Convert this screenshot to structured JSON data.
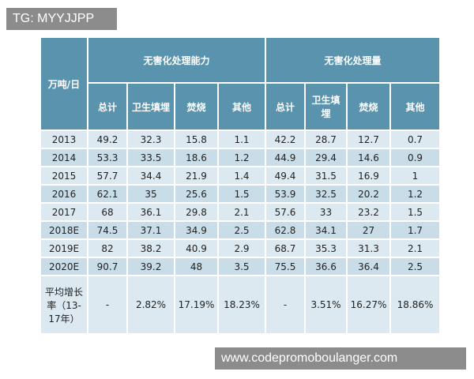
{
  "watermark_top": "TG: MYYJJPP",
  "watermark_bottom": "www.codepromoboulanger.com",
  "table": {
    "unit": "万吨/日",
    "groups": [
      "无害化处理能力",
      "无害化处理量"
    ],
    "subheaders": [
      "总计",
      "卫生填埋",
      "焚烧",
      "其他",
      "总计",
      "卫生填埋",
      "焚烧",
      "其他"
    ],
    "rows": [
      [
        "2013",
        "49.2",
        "32.3",
        "15.8",
        "1.1",
        "42.2",
        "28.7",
        "12.7",
        "0.7"
      ],
      [
        "2014",
        "53.3",
        "33.5",
        "18.6",
        "1.2",
        "44.9",
        "29.4",
        "14.6",
        "0.9"
      ],
      [
        "2015",
        "57.7",
        "34.4",
        "21.9",
        "1.4",
        "49.4",
        "31.5",
        "16.9",
        "1"
      ],
      [
        "2016",
        "62.1",
        "35",
        "25.6",
        "1.5",
        "53.9",
        "32.5",
        "20.2",
        "1.2"
      ],
      [
        "2017",
        "68",
        "36.1",
        "29.8",
        "2.1",
        "57.6",
        "33",
        "23.2",
        "1.5"
      ],
      [
        "2018E",
        "74.5",
        "37.1",
        "34.9",
        "2.5",
        "62.8",
        "34.1",
        "27",
        "1.7"
      ],
      [
        "2019E",
        "82",
        "38.2",
        "40.9",
        "2.9",
        "68.7",
        "35.3",
        "31.3",
        "2.1"
      ],
      [
        "2020E",
        "90.7",
        "39.2",
        "48",
        "3.5",
        "75.5",
        "36.6",
        "36.4",
        "2.5"
      ],
      [
        "平均增长率（13-17年）",
        "-",
        "2.82%",
        "17.19%",
        "18.23%",
        "-",
        "3.51%",
        "16.27%",
        "18.86%"
      ]
    ]
  }
}
